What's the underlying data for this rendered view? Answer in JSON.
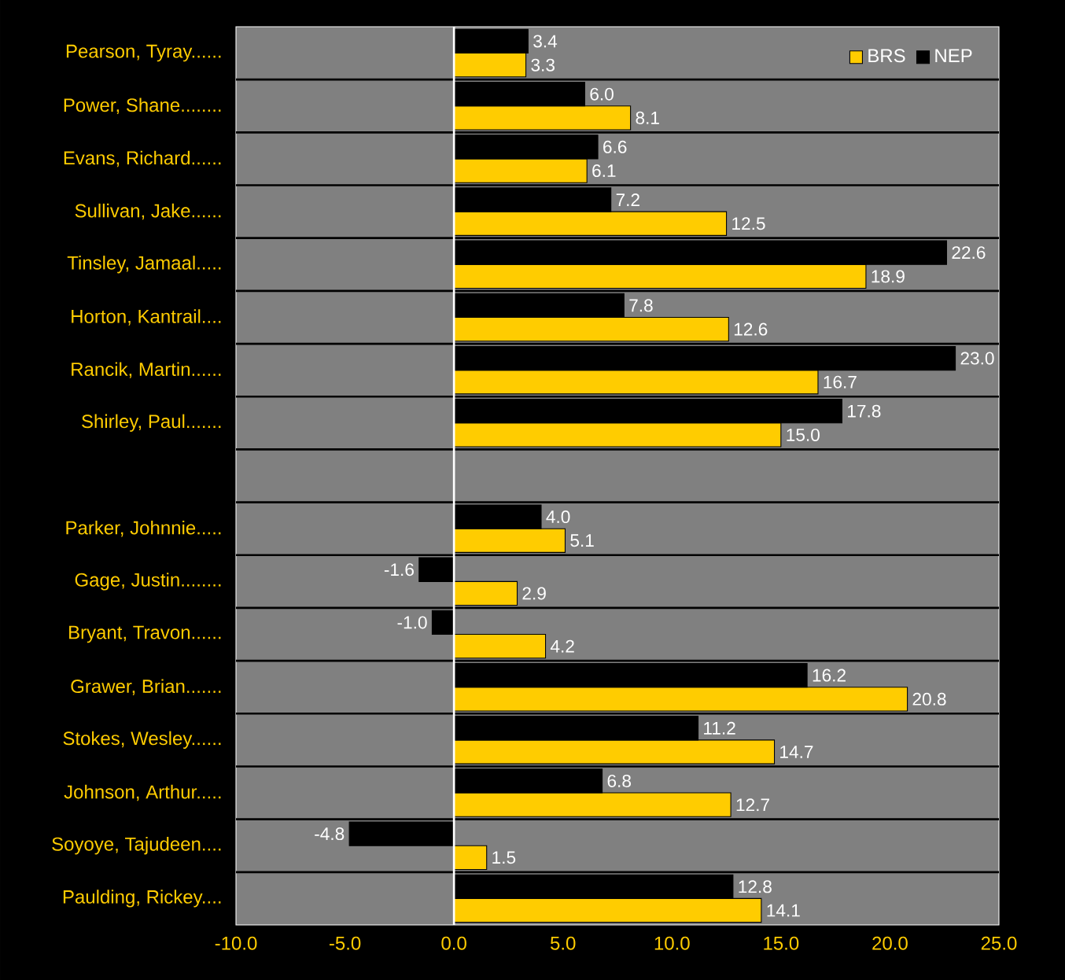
{
  "chart_data": {
    "type": "bar",
    "orientation": "horizontal",
    "categories": [
      "Pearson, Tyray......",
      "Power, Shane........",
      "Evans, Richard......",
      "Sullivan, Jake......",
      "Tinsley, Jamaal.....",
      "Horton, Kantrail....",
      "Rancik, Martin......",
      "Shirley, Paul.......",
      null,
      "Parker, Johnnie.....",
      "Gage, Justin........",
      "Bryant, Travon......",
      "Grawer, Brian.......",
      "Stokes, Wesley......",
      "Johnson, Arthur.....",
      "Soyoye, Tajudeen....",
      "Paulding, Rickey...."
    ],
    "series": [
      {
        "name": "BRS",
        "color": "#ffcc00",
        "values": [
          3.3,
          8.1,
          6.1,
          12.5,
          18.9,
          12.6,
          16.7,
          15.0,
          null,
          5.1,
          2.9,
          4.2,
          20.8,
          14.7,
          12.7,
          1.5,
          14.1
        ],
        "value_labels": [
          "3.3",
          "8.1",
          "6.1",
          "12.5",
          "18.9",
          "12.6",
          "16.7",
          "15.0",
          null,
          "5.1",
          "2.9",
          "4.2",
          "20.8",
          "14.7",
          "12.7",
          "1.5",
          "14.1"
        ]
      },
      {
        "name": "NEP",
        "color": "#000000",
        "values": [
          3.4,
          6.0,
          6.6,
          7.2,
          22.6,
          7.8,
          23.0,
          17.8,
          null,
          4.0,
          -1.6,
          -1.0,
          16.2,
          11.2,
          6.8,
          -4.8,
          12.8
        ],
        "value_labels": [
          "3.4",
          "6.0",
          "6.6",
          "7.2",
          "22.6",
          "7.8",
          "23.0",
          "17.8",
          null,
          "4.0",
          "-1.6",
          "-1.0",
          "16.2",
          "11.2",
          "6.8",
          "-4.8",
          "12.8"
        ]
      }
    ],
    "xlim": [
      -10,
      25
    ],
    "xticks": [
      {
        "value": -10,
        "label": "-10.0"
      },
      {
        "value": -5,
        "label": "-5.0"
      },
      {
        "value": 0,
        "label": "0.0"
      },
      {
        "value": 5,
        "label": "5.0"
      },
      {
        "value": 10,
        "label": "10.0"
      },
      {
        "value": 15,
        "label": "15.0"
      },
      {
        "value": 20,
        "label": "20.0"
      },
      {
        "value": 25,
        "label": "25.0"
      }
    ],
    "legend": "top right"
  }
}
